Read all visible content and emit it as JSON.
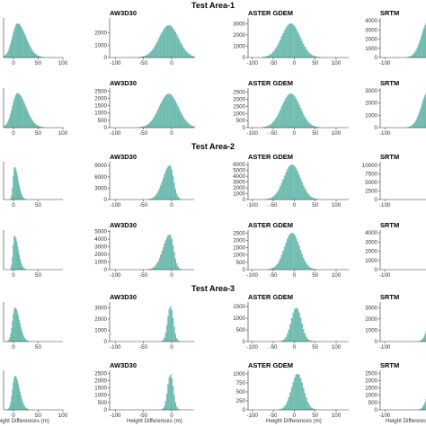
{
  "figure": {
    "area_titles": [
      "Test Area-1",
      "Test Area-2",
      "Test Area-3"
    ],
    "xlabel": "Height Differences (m)",
    "bar_color": "#79c3b8",
    "bar_edge_color": "#5aa99d"
  },
  "chart_data": [
    {
      "type": "bar",
      "area": "Test Area-1",
      "row": 1,
      "title": "",
      "xlim": [
        -20,
        100
      ],
      "xticks": [
        0,
        50,
        100
      ],
      "ylim": [
        0,
        3500
      ],
      "yticks": [],
      "shape": {
        "mean": 8,
        "sd": 12,
        "peak": 3000,
        "skew": 1.2
      }
    },
    {
      "type": "bar",
      "area": "Test Area-1",
      "row": 1,
      "title": "AW3D30",
      "xlim": [
        -110,
        40
      ],
      "xticks": [
        -100,
        -50,
        0
      ],
      "ylim": [
        0,
        3200
      ],
      "yticks": [
        0,
        1000,
        2000
      ],
      "shape": {
        "mean": -5,
        "sd": 17,
        "peak": 2600,
        "skew": 0
      }
    },
    {
      "type": "bar",
      "area": "Test Area-1",
      "row": 1,
      "title": "ASTER GDEM",
      "xlim": [
        -110,
        130
      ],
      "xticks": [
        -100,
        -50,
        0,
        50,
        100
      ],
      "ylim": [
        0,
        3500
      ],
      "yticks": [
        0,
        1000,
        2000,
        3000
      ],
      "shape": {
        "mean": -8,
        "sd": 22,
        "peak": 3000,
        "skew": 0
      }
    },
    {
      "type": "bar",
      "area": "Test Area-1",
      "row": 1,
      "title": "SRTM",
      "xlim": [
        -110,
        40
      ],
      "xticks": [
        -100
      ],
      "ylim": [
        0,
        4300
      ],
      "yticks": [
        0,
        1000,
        2000,
        3000,
        4000
      ],
      "shape": {
        "mean": -5,
        "sd": 15,
        "peak": 4000,
        "skew": 0
      }
    },
    {
      "type": "bar",
      "area": "Test Area-1",
      "row": 2,
      "title": "",
      "xlim": [
        -20,
        100
      ],
      "xticks": [
        0,
        50,
        100
      ],
      "ylim": [
        0,
        3000
      ],
      "yticks": [],
      "shape": {
        "mean": 8,
        "sd": 12,
        "peak": 2600,
        "skew": 1.2
      }
    },
    {
      "type": "bar",
      "area": "Test Area-1",
      "row": 2,
      "title": "AW3D30",
      "xlim": [
        -110,
        40
      ],
      "xticks": [
        -100,
        -50,
        0
      ],
      "ylim": [
        0,
        2700
      ],
      "yticks": [
        0,
        500,
        1000,
        1500,
        2000,
        2500
      ],
      "shape": {
        "mean": -5,
        "sd": 17,
        "peak": 2300,
        "skew": 0
      }
    },
    {
      "type": "bar",
      "area": "Test Area-1",
      "row": 2,
      "title": "ASTER GDEM",
      "xlim": [
        -110,
        130
      ],
      "xticks": [
        -100,
        -50,
        0,
        50,
        100
      ],
      "ylim": [
        0,
        2800
      ],
      "yticks": [
        0,
        500,
        1000,
        1500,
        2000,
        2500
      ],
      "shape": {
        "mean": -8,
        "sd": 22,
        "peak": 2400,
        "skew": 0
      }
    },
    {
      "type": "bar",
      "area": "Test Area-1",
      "row": 2,
      "title": "SRTM",
      "xlim": [
        -110,
        40
      ],
      "xticks": [
        -100
      ],
      "ylim": [
        0,
        3200
      ],
      "yticks": [
        0,
        1000,
        2000,
        3000
      ],
      "shape": {
        "mean": -5,
        "sd": 15,
        "peak": 3000,
        "skew": 0
      }
    },
    {
      "type": "bar",
      "area": "Test Area-2",
      "row": 3,
      "title": "",
      "xlim": [
        -20,
        100
      ],
      "xticks": [
        0,
        50
      ],
      "ylim": [
        0,
        3500
      ],
      "yticks": [],
      "shape": {
        "mean": 2,
        "sd": 4,
        "peak": 3000,
        "skew": 2.5
      }
    },
    {
      "type": "bar",
      "area": "Test Area-2",
      "row": 3,
      "title": "AW3D30",
      "xlim": [
        -110,
        40
      ],
      "xticks": [
        -100,
        -50,
        0
      ],
      "ylim": [
        0,
        10000
      ],
      "yticks": [
        0,
        3000,
        6000,
        9000
      ],
      "shape": {
        "mean": -3,
        "sd": 8,
        "peak": 9000,
        "skew": -1.5
      }
    },
    {
      "type": "bar",
      "area": "Test Area-2",
      "row": 3,
      "title": "ASTER GDEM",
      "xlim": [
        -110,
        130
      ],
      "xticks": [
        -100,
        -50,
        0,
        50,
        100
      ],
      "ylim": [
        0,
        6500
      ],
      "yticks": [
        0,
        1000,
        2000,
        3000,
        4000,
        5000,
        6000
      ],
      "shape": {
        "mean": -5,
        "sd": 20,
        "peak": 6000,
        "skew": 0
      }
    },
    {
      "type": "bar",
      "area": "Test Area-2",
      "row": 3,
      "title": "SRTM",
      "xlim": [
        -110,
        40
      ],
      "xticks": [
        -100
      ],
      "ylim": [
        0,
        11000
      ],
      "yticks": [
        0,
        2500,
        5000,
        7500,
        10000
      ],
      "shape": {
        "mean": 20,
        "sd": 10,
        "peak": 2500,
        "skew": 0
      }
    },
    {
      "type": "bar",
      "area": "Test Area-2",
      "row": 4,
      "title": "",
      "xlim": [
        -20,
        100
      ],
      "xticks": [
        0,
        50
      ],
      "ylim": [
        0,
        3500
      ],
      "yticks": [],
      "shape": {
        "mean": 2,
        "sd": 4,
        "peak": 3000,
        "skew": 2.5
      }
    },
    {
      "type": "bar",
      "area": "Test Area-2",
      "row": 4,
      "title": "AW3D30",
      "xlim": [
        -110,
        40
      ],
      "xticks": [
        -100,
        -50,
        0
      ],
      "ylim": [
        0,
        5200
      ],
      "yticks": [
        0,
        1000,
        2000,
        3000,
        4000,
        5000
      ],
      "shape": {
        "mean": -3,
        "sd": 8,
        "peak": 4600,
        "skew": -1.5
      }
    },
    {
      "type": "bar",
      "area": "Test Area-2",
      "row": 4,
      "title": "ASTER GDEM",
      "xlim": [
        -110,
        130
      ],
      "xticks": [
        -100,
        -50,
        0,
        50,
        100
      ],
      "ylim": [
        0,
        2700
      ],
      "yticks": [
        0,
        500,
        1000,
        1500,
        2000,
        2500
      ],
      "shape": {
        "mean": -5,
        "sd": 18,
        "peak": 2500,
        "skew": 0
      }
    },
    {
      "type": "bar",
      "area": "Test Area-2",
      "row": 4,
      "title": "SRTM",
      "xlim": [
        -110,
        40
      ],
      "xticks": [
        -100
      ],
      "ylim": [
        0,
        4300
      ],
      "yticks": [
        0,
        1000,
        2000,
        3000,
        4000
      ],
      "shape": {
        "mean": 20,
        "sd": 10,
        "peak": 1000,
        "skew": 0
      }
    },
    {
      "type": "bar",
      "area": "Test Area-3",
      "row": 5,
      "title": "",
      "xlim": [
        -20,
        100
      ],
      "xticks": [
        0,
        50
      ],
      "ylim": [
        0,
        3500
      ],
      "yticks": [],
      "shape": {
        "mean": 3,
        "sd": 6,
        "peak": 3000,
        "skew": 1.5
      }
    },
    {
      "type": "bar",
      "area": "Test Area-3",
      "row": 5,
      "title": "AW3D30",
      "xlim": [
        -110,
        40
      ],
      "xticks": [
        -100,
        -50,
        0
      ],
      "ylim": [
        0,
        3500
      ],
      "yticks": [
        0,
        1000,
        2000,
        3000
      ],
      "shape": {
        "mean": -2,
        "sd": 5,
        "peak": 3100,
        "skew": 0
      }
    },
    {
      "type": "bar",
      "area": "Test Area-3",
      "row": 5,
      "title": "ASTER GDEM",
      "xlim": [
        -110,
        130
      ],
      "xticks": [
        -100,
        -50,
        0,
        50,
        100
      ],
      "ylim": [
        0,
        1700
      ],
      "yticks": [
        0,
        500,
        1000,
        1500
      ],
      "shape": {
        "mean": 5,
        "sd": 12,
        "peak": 1450,
        "skew": 0
      }
    },
    {
      "type": "bar",
      "area": "Test Area-3",
      "row": 5,
      "title": "SRTM",
      "xlim": [
        -110,
        40
      ],
      "xticks": [
        -100
      ],
      "ylim": [
        0,
        3500
      ],
      "yticks": [
        0,
        1000,
        2000,
        3000
      ],
      "shape": {
        "mean": 5,
        "sd": 10,
        "peak": 3000,
        "skew": 0
      }
    },
    {
      "type": "bar",
      "area": "Test Area-3",
      "row": 6,
      "title": "",
      "xlim": [
        -20,
        100
      ],
      "xticks": [
        0,
        50,
        100
      ],
      "ylim": [
        0,
        3500
      ],
      "yticks": [],
      "shape": {
        "mean": 3,
        "sd": 6,
        "peak": 3000,
        "skew": 1.5
      }
    },
    {
      "type": "bar",
      "area": "Test Area-3",
      "row": 6,
      "title": "AW3D30",
      "xlim": [
        -110,
        40
      ],
      "xticks": [
        -100,
        -50,
        0
      ],
      "ylim": [
        0,
        2700
      ],
      "yticks": [
        0,
        500,
        1000,
        1500,
        2000,
        2500
      ],
      "shape": {
        "mean": -2,
        "sd": 5,
        "peak": 2400,
        "skew": 0
      }
    },
    {
      "type": "bar",
      "area": "Test Area-3",
      "row": 6,
      "title": "ASTER GDEM",
      "xlim": [
        -110,
        130
      ],
      "xticks": [
        -100,
        -50,
        0,
        50,
        100
      ],
      "ylim": [
        0,
        1100
      ],
      "yticks": [
        0,
        250,
        500,
        750,
        1000
      ],
      "shape": {
        "mean": 8,
        "sd": 14,
        "peak": 1000,
        "skew": 0,
        "bimodal": true
      }
    },
    {
      "type": "bar",
      "area": "Test Area-3",
      "row": 6,
      "title": "SRTM",
      "xlim": [
        -110,
        40
      ],
      "xticks": [
        -100
      ],
      "ylim": [
        0,
        2700
      ],
      "yticks": [
        0,
        500,
        1000,
        1500,
        2000,
        2500
      ],
      "shape": {
        "mean": 5,
        "sd": 10,
        "peak": 2400,
        "skew": 0
      }
    }
  ]
}
